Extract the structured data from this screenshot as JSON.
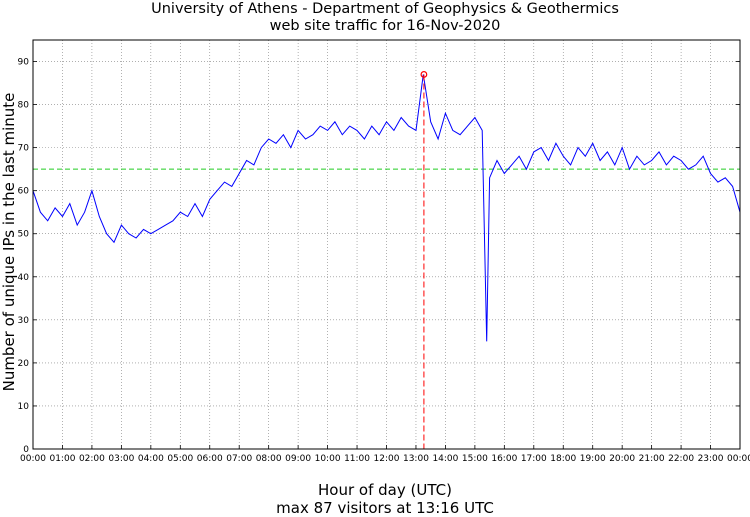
{
  "chart_data": {
    "type": "line",
    "title": "University of Athens - Department of Geophysics & Geothermics",
    "subtitle": "web site traffic for 16-Nov-2020",
    "xlabel": "Hour of day (UTC)",
    "caption": "max 87 visitors at 13:16 UTC",
    "ylabel": "Number of unique IPs in the last minute",
    "x_unit": "hours",
    "xlim": [
      0,
      24
    ],
    "ylim": [
      0,
      95
    ],
    "x_tick_labels": [
      "00:00",
      "01:00",
      "02:00",
      "03:00",
      "04:00",
      "05:00",
      "06:00",
      "07:00",
      "08:00",
      "09:00",
      "10:00",
      "11:00",
      "12:00",
      "13:00",
      "14:00",
      "15:00",
      "16:00",
      "17:00",
      "18:00",
      "19:00",
      "20:00",
      "21:00",
      "22:00",
      "23:00",
      "00:00"
    ],
    "y_ticks": [
      0,
      10,
      20,
      30,
      40,
      50,
      60,
      70,
      80,
      90
    ],
    "grid": true,
    "reference_line": {
      "y": 65,
      "color": "#22cc22",
      "style": "dashed"
    },
    "max_marker": {
      "x": 13.27,
      "y": 87,
      "color": "#ff0000"
    },
    "series": [
      {
        "color": "#0000ff",
        "x": [
          0,
          0.25,
          0.5,
          0.75,
          1,
          1.25,
          1.5,
          1.75,
          2,
          2.25,
          2.5,
          2.75,
          3,
          3.25,
          3.5,
          3.75,
          4,
          4.25,
          4.5,
          4.75,
          5,
          5.25,
          5.5,
          5.75,
          6,
          6.25,
          6.5,
          6.75,
          7,
          7.25,
          7.5,
          7.75,
          8,
          8.25,
          8.5,
          8.75,
          9,
          9.25,
          9.5,
          9.75,
          10,
          10.25,
          10.5,
          10.75,
          11,
          11.25,
          11.5,
          11.75,
          12,
          12.25,
          12.5,
          12.75,
          13,
          13.25,
          13.5,
          13.75,
          14,
          14.25,
          14.5,
          14.75,
          15,
          15.25,
          15.4,
          15.5,
          15.75,
          16,
          16.25,
          16.5,
          16.75,
          17,
          17.25,
          17.5,
          17.75,
          18,
          18.25,
          18.5,
          18.75,
          19,
          19.25,
          19.5,
          19.75,
          20,
          20.25,
          20.5,
          20.75,
          21,
          21.25,
          21.5,
          21.75,
          22,
          22.25,
          22.5,
          22.75,
          23,
          23.25,
          23.5,
          23.75,
          24
        ],
        "values": [
          60,
          55,
          53,
          56,
          54,
          57,
          52,
          55,
          60,
          54,
          50,
          48,
          52,
          50,
          49,
          51,
          50,
          51,
          52,
          53,
          55,
          54,
          57,
          54,
          58,
          60,
          62,
          61,
          64,
          67,
          66,
          70,
          72,
          71,
          73,
          70,
          74,
          72,
          73,
          75,
          74,
          76,
          73,
          75,
          74,
          72,
          75,
          73,
          76,
          74,
          77,
          75,
          74,
          87,
          76,
          72,
          78,
          74,
          73,
          75,
          77,
          74,
          25,
          63,
          67,
          64,
          66,
          68,
          65,
          69,
          70,
          67,
          71,
          68,
          66,
          70,
          68,
          71,
          67,
          69,
          66,
          70,
          65,
          68,
          66,
          67,
          69,
          66,
          68,
          67,
          65,
          66,
          68,
          64,
          62,
          63,
          61,
          55
        ]
      }
    ]
  }
}
